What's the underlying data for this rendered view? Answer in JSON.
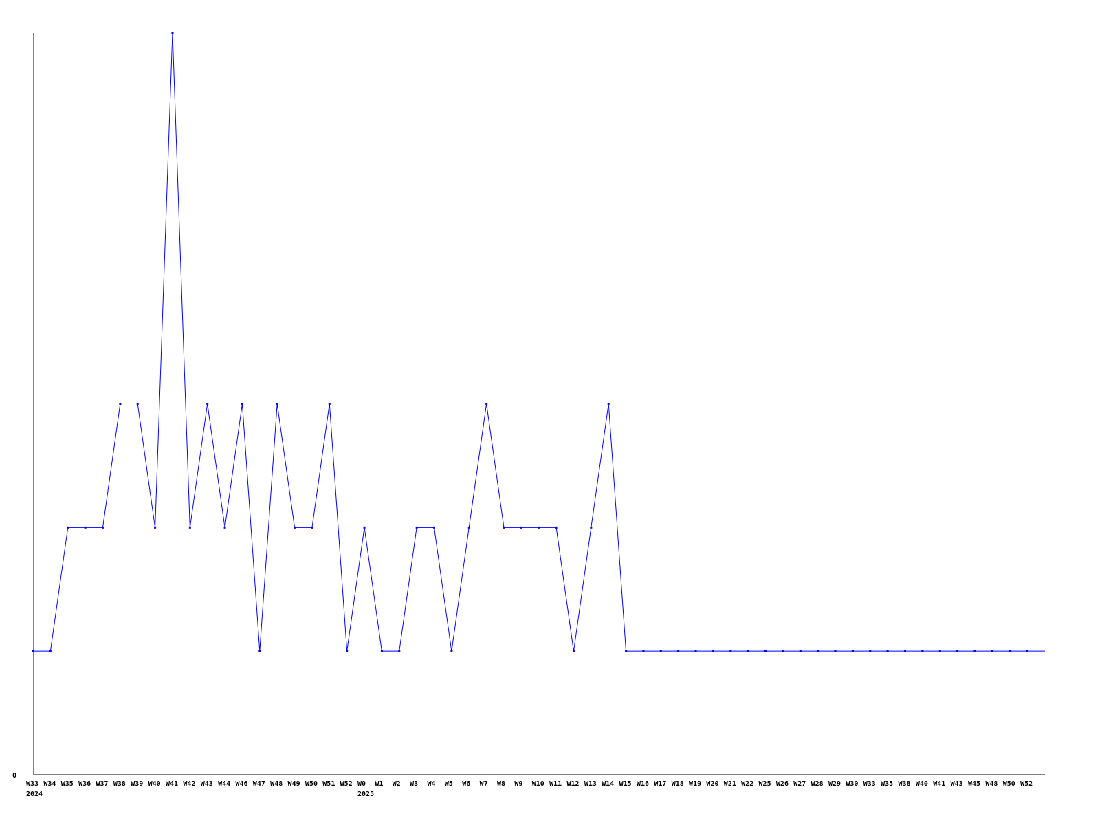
{
  "chart_data": {
    "type": "line",
    "title": "",
    "xlabel": "",
    "ylabel": "",
    "ylim": [
      0,
      6
    ],
    "y_tick_labels": [
      "0"
    ],
    "grid": false,
    "line_color": "#0000ff",
    "x": [
      "W33",
      "W34",
      "W35",
      "W36",
      "W37",
      "W38",
      "W39",
      "W40",
      "W41",
      "W42",
      "W43",
      "W44",
      "W46",
      "W47",
      "W48",
      "W49",
      "W50",
      "W51",
      "W52",
      "W0",
      "W1",
      "W2",
      "W3",
      "W4",
      "W5",
      "W6",
      "W7",
      "W8",
      "W9",
      "W10",
      "W11",
      "W12",
      "W13",
      "W14",
      "W15",
      "W16",
      "W17",
      "W18",
      "W19",
      "W20",
      "W21",
      "W22",
      "W25",
      "W26",
      "W27",
      "W28",
      "W29",
      "W30",
      "W33",
      "W35",
      "W38",
      "W40",
      "W41",
      "W43",
      "W45",
      "W48",
      "W50",
      "W52"
    ],
    "year_labels": [
      {
        "index": 0,
        "label": "2024"
      },
      {
        "index": 19,
        "label": "2025"
      }
    ],
    "values": [
      1,
      1,
      2,
      2,
      2,
      3,
      3,
      2,
      6,
      2,
      3,
      2,
      3,
      1,
      3,
      2,
      2,
      3,
      1,
      2,
      1,
      1,
      2,
      2,
      1,
      2,
      3,
      2,
      2,
      2,
      2,
      1,
      2,
      3,
      1,
      1,
      1,
      1,
      1,
      1,
      1,
      1,
      1,
      1,
      1,
      1,
      1,
      1,
      1,
      1,
      1,
      1,
      1,
      1,
      1,
      1,
      1,
      1
    ]
  }
}
